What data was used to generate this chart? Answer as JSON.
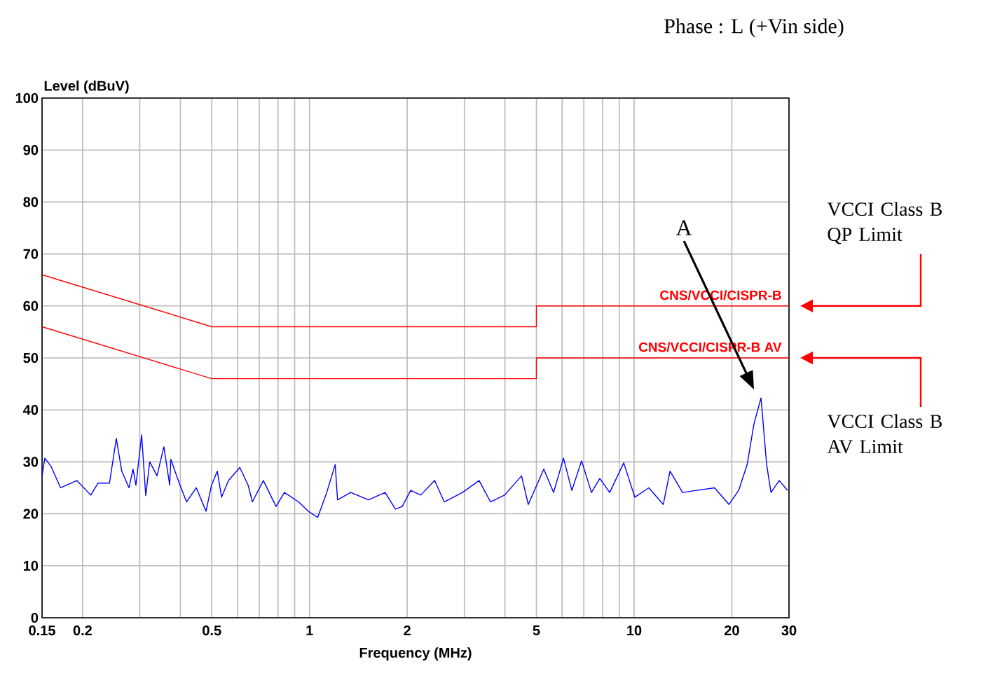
{
  "chart_data": {
    "type": "line",
    "title": "Phase : L (+Vin side)",
    "xlabel": "Frequency (MHz)",
    "ylabel": "Level (dBuV)",
    "log": "x",
    "grid": true,
    "marker": "none",
    "line_style": "solid",
    "xlim": [
      0.15,
      30
    ],
    "ylim": [
      0,
      100
    ],
    "xticks": [
      0.15,
      0.2,
      {
        "value": 0.3,
        "label": null
      },
      {
        "value": 0.4,
        "label": null
      },
      0.5,
      {
        "value": 0.6,
        "label": null
      },
      {
        "value": 0.7,
        "label": null
      },
      {
        "value": 0.8,
        "label": null
      },
      {
        "value": 0.9,
        "label": null
      },
      1,
      2,
      {
        "value": 3,
        "label": null
      },
      {
        "value": 4,
        "label": null
      },
      5,
      {
        "value": 6,
        "label": null
      },
      {
        "value": 7,
        "label": null
      },
      {
        "value": 8,
        "label": null
      },
      {
        "value": 9,
        "label": null
      },
      10,
      20,
      30
    ],
    "yticks": [
      0,
      10,
      20,
      30,
      40,
      50,
      60,
      70,
      80,
      90,
      100
    ],
    "series": [
      {
        "color": "#0000ff",
        "x": [
          0.15,
          0.153,
          0.16,
          0.171,
          0.192,
          0.212,
          0.223,
          0.242,
          0.254,
          0.264,
          0.278,
          0.286,
          0.292,
          0.304,
          0.313,
          0.322,
          0.339,
          0.356,
          0.371,
          0.374,
          0.397,
          0.418,
          0.448,
          0.48,
          0.499,
          0.52,
          0.536,
          0.563,
          0.61,
          0.647,
          0.667,
          0.721,
          0.789,
          0.837,
          0.925,
          0.991,
          1.06,
          1.13,
          1.2,
          1.22,
          1.34,
          1.52,
          1.71,
          1.84,
          1.93,
          2.05,
          2.2,
          2.43,
          2.6,
          2.96,
          3.33,
          3.61,
          3.99,
          4.5,
          4.72,
          5.27,
          5.65,
          6.06,
          6.43,
          6.89,
          7.39,
          7.84,
          8.41,
          9.29,
          10.05,
          11.1,
          12.3,
          12.9,
          14.1,
          15.6,
          17.7,
          19.6,
          21.0,
          22.3,
          23.4,
          24.6,
          25.6,
          26.4,
          28.0,
          29.7
        ],
        "values": [
          27.3,
          30.7,
          29.1,
          25,
          26.4,
          23.6,
          25.9,
          25.9,
          34.5,
          28.2,
          25,
          28.6,
          25.5,
          35.2,
          23.5,
          30,
          27.3,
          32.9,
          25.5,
          30.5,
          25.9,
          22.3,
          25,
          20.5,
          25.5,
          28.2,
          23.2,
          26.4,
          28.9,
          25.5,
          22.3,
          26.4,
          21.4,
          24.1,
          22.3,
          20.5,
          19.3,
          24.1,
          29.5,
          22.7,
          24.1,
          22.7,
          24.1,
          20.9,
          21.4,
          24.5,
          23.6,
          26.4,
          22.3,
          24.1,
          26.4,
          22.3,
          23.6,
          27.3,
          21.8,
          28.6,
          24.1,
          30.7,
          24.5,
          30.2,
          24.1,
          26.8,
          24.1,
          29.8,
          23.2,
          25,
          21.8,
          28.2,
          24.1,
          24.5,
          25,
          21.8,
          24.5,
          29.5,
          37.3,
          42.3,
          29.5,
          24.1,
          26.4,
          24.5
        ]
      },
      {
        "name": "CNS/VCCI/CISPR-B",
        "color": "#ff0000",
        "x": [
          0.15,
          0.5,
          0.5,
          5,
          5,
          30
        ],
        "values": [
          66,
          56,
          56,
          56,
          60,
          60
        ]
      },
      {
        "name": "CNS/VCCI/CISPR-B AV",
        "color": "#ff0000",
        "x": [
          0.15,
          0.5,
          0.5,
          5,
          5,
          30
        ],
        "values": [
          56,
          46,
          46,
          46,
          50,
          50
        ]
      }
    ],
    "legend": "right",
    "annotations": [
      "A",
      "VCCI Class B QP Limit",
      "VCCI Class B AV Limit"
    ]
  }
}
